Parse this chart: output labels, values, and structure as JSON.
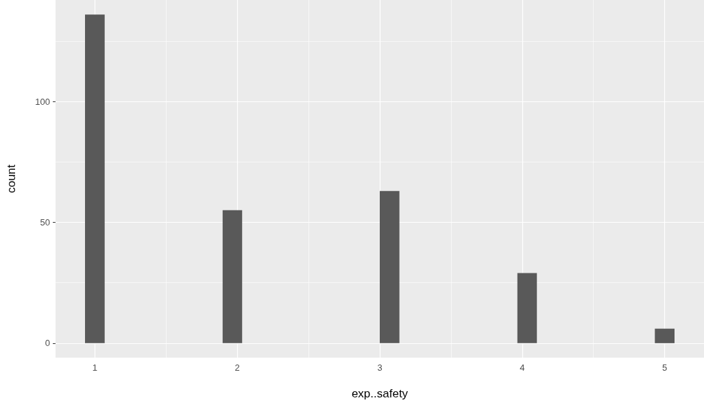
{
  "chart_data": {
    "type": "histogram",
    "xlabel": "exp..safety",
    "ylabel": "count",
    "bins": [
      0.931,
      1.069,
      1.207,
      1.345,
      1.483,
      1.621,
      1.759,
      1.897,
      2.034,
      2.172,
      2.31,
      2.448,
      2.586,
      2.724,
      2.862,
      3.0,
      3.138,
      3.276,
      3.414,
      3.552,
      3.69,
      3.828,
      3.966,
      4.103,
      4.241,
      4.379,
      4.517,
      4.655,
      4.793,
      4.931,
      5.069
    ],
    "values": [
      136,
      0,
      0,
      0,
      0,
      0,
      0,
      55,
      0,
      0,
      0,
      0,
      0,
      0,
      0,
      63,
      0,
      0,
      0,
      0,
      0,
      0,
      29,
      0,
      0,
      0,
      0,
      0,
      0,
      6
    ],
    "color": "#595959",
    "xlim": [
      0.724,
      5.276
    ],
    "xticks": [
      1,
      2,
      3,
      4,
      5
    ],
    "ylim": [
      -6,
      142
    ],
    "yticks": [
      0,
      50,
      100
    ],
    "grid": true
  }
}
